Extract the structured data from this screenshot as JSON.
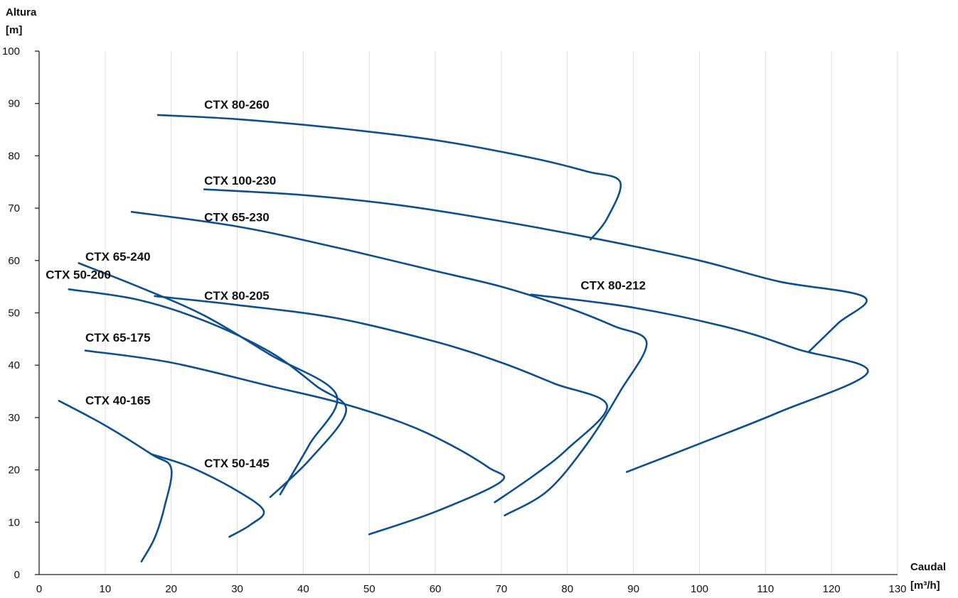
{
  "chart_data": {
    "type": "line",
    "ylabel_line1": "Altura",
    "ylabel_line2": "[m]",
    "xlabel_line1": "Caudal",
    "xlabel_line2": "[m³/h]",
    "xlim": [
      0,
      130
    ],
    "ylim": [
      0,
      100
    ],
    "x_ticks": [
      0,
      10,
      20,
      30,
      40,
      50,
      60,
      70,
      80,
      90,
      100,
      110,
      120,
      130
    ],
    "y_ticks": [
      0,
      10,
      20,
      30,
      40,
      50,
      60,
      70,
      80,
      90,
      100
    ],
    "grid": "vertical",
    "line_color": "#0e4f8b",
    "series": [
      {
        "name": "CTX 80-260",
        "label_at": [
          25,
          89
        ],
        "points": [
          [
            18,
            87.8
          ],
          [
            30,
            87
          ],
          [
            45,
            85.3
          ],
          [
            60,
            83
          ],
          [
            75,
            79.5
          ],
          [
            83,
            77
          ],
          [
            88,
            75
          ],
          [
            86,
            68
          ],
          [
            83.5,
            64
          ]
        ]
      },
      {
        "name": "CTX 100-230",
        "label_at": [
          25,
          74.5
        ],
        "points": [
          [
            25,
            73.6
          ],
          [
            40,
            72.5
          ],
          [
            55,
            70.5
          ],
          [
            70,
            67.5
          ],
          [
            85,
            64
          ],
          [
            100,
            60
          ],
          [
            112,
            56
          ],
          [
            125,
            53
          ],
          [
            121,
            48
          ],
          [
            116.5,
            42.5
          ]
        ]
      },
      {
        "name": "CTX 65-230",
        "label_at": [
          25,
          67.5
        ],
        "points": [
          [
            14,
            69.3
          ],
          [
            30,
            66.5
          ],
          [
            45,
            62.5
          ],
          [
            60,
            58
          ],
          [
            70,
            55
          ],
          [
            80,
            51
          ],
          [
            87,
            47.5
          ],
          [
            92,
            44.3
          ],
          [
            88,
            35
          ],
          [
            83,
            25
          ],
          [
            77,
            16
          ],
          [
            70.5,
            11.3
          ]
        ]
      },
      {
        "name": "CTX 80-212",
        "label_at": [
          82,
          54.5
        ],
        "points": [
          [
            74.5,
            53.5
          ],
          [
            90,
            51
          ],
          [
            105,
            47
          ],
          [
            115,
            43
          ],
          [
            125.5,
            38.7
          ],
          [
            112,
            31
          ],
          [
            100,
            25
          ],
          [
            89,
            19.6
          ]
        ]
      },
      {
        "name": "CTX 65-240",
        "label_at": [
          7,
          60
        ],
        "points": [
          [
            6,
            59.5
          ],
          [
            15,
            55
          ],
          [
            25,
            49.5
          ],
          [
            35,
            42
          ],
          [
            45,
            34.4
          ],
          [
            41,
            25
          ],
          [
            38,
            18.5
          ],
          [
            36.5,
            15.3
          ]
        ]
      },
      {
        "name": "CTX 50-200",
        "label_at": [
          1,
          56.5
        ],
        "points": [
          [
            4.5,
            54.5
          ],
          [
            15,
            52.5
          ],
          [
            25,
            48.5
          ],
          [
            35,
            42.5
          ],
          [
            42,
            36
          ],
          [
            46.5,
            31.3
          ],
          [
            41,
            22
          ],
          [
            35,
            14.8
          ]
        ]
      },
      {
        "name": "CTX 80-205",
        "label_at": [
          25,
          52.5
        ],
        "points": [
          [
            17.5,
            53.2
          ],
          [
            30,
            51.5
          ],
          [
            45,
            49
          ],
          [
            60,
            44.5
          ],
          [
            70,
            40.5
          ],
          [
            78,
            36.5
          ],
          [
            86,
            32.3
          ],
          [
            80,
            24
          ],
          [
            75,
            19
          ],
          [
            69,
            13.8
          ]
        ]
      },
      {
        "name": "CTX 65-175",
        "label_at": [
          7,
          44.5
        ],
        "points": [
          [
            7,
            42.8
          ],
          [
            20,
            40.5
          ],
          [
            35,
            36
          ],
          [
            45,
            33
          ],
          [
            55,
            29
          ],
          [
            62,
            25
          ],
          [
            68,
            20.5
          ],
          [
            70,
            17.8
          ],
          [
            60,
            12
          ],
          [
            50,
            7.7
          ]
        ]
      },
      {
        "name": "CTX 40-165",
        "label_at": [
          7,
          32.5
        ],
        "points": [
          [
            3,
            33.2
          ],
          [
            10,
            28.5
          ],
          [
            17,
            23
          ],
          [
            20,
            20.3
          ],
          [
            19,
            13
          ],
          [
            17.5,
            7
          ],
          [
            15.5,
            2.5
          ]
        ]
      },
      {
        "name": "CTX 50-145",
        "label_at": [
          25,
          20.5
        ],
        "points": [
          [
            17,
            23
          ],
          [
            23,
            20.5
          ],
          [
            30,
            16
          ],
          [
            34,
            12.2
          ],
          [
            32,
            9.5
          ],
          [
            28.8,
            7.2
          ]
        ]
      }
    ]
  }
}
